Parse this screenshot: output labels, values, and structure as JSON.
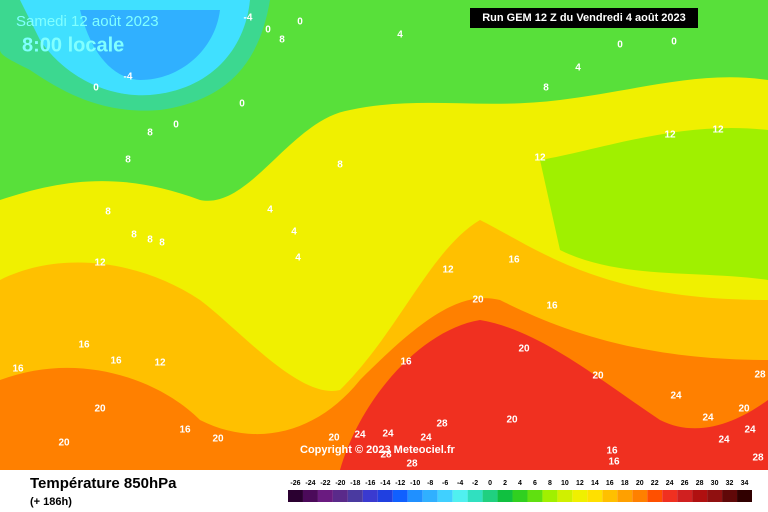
{
  "header": {
    "date": "Samedi 12 août 2023",
    "time": "8:00 locale",
    "run": "Run GEM 12 Z du Vendredi 4 août 2023",
    "copyright": "Copyright © 2023 Meteociel.fr"
  },
  "footer": {
    "title": "Température 850hPa",
    "lead": "(+ 186h)"
  },
  "scale": {
    "ticks": [
      -26,
      -24,
      -22,
      -20,
      -18,
      -16,
      -14,
      -12,
      -10,
      -8,
      -6,
      -4,
      -2,
      0,
      2,
      4,
      6,
      8,
      10,
      12,
      14,
      16,
      18,
      20,
      22,
      24,
      26,
      28,
      30,
      32,
      34
    ],
    "colors": [
      "#2a0030",
      "#4b0a5a",
      "#6a1b80",
      "#5a2a8a",
      "#4a3aa0",
      "#3a3ad0",
      "#2040e0",
      "#1060ff",
      "#2090ff",
      "#30b0ff",
      "#40d0ff",
      "#50f0f0",
      "#30e0c0",
      "#20d080",
      "#10c040",
      "#30d020",
      "#60e010",
      "#a0f000",
      "#d0f000",
      "#f0f000",
      "#ffe000",
      "#ffc000",
      "#ffa000",
      "#ff8000",
      "#ff5000",
      "#f03020",
      "#d02020",
      "#b01010",
      "#901010",
      "#600808",
      "#300000"
    ]
  },
  "contour_labels": [
    -4,
    0,
    8,
    0,
    -4,
    0,
    0,
    0,
    8,
    8,
    8,
    8,
    8,
    8,
    12,
    4,
    4,
    8,
    0,
    0,
    12,
    12,
    12,
    8,
    4,
    4,
    4,
    12,
    16,
    20,
    16,
    20,
    16,
    20,
    16,
    16,
    12,
    16,
    20,
    16,
    20,
    20,
    28,
    24,
    24,
    20,
    24,
    24,
    20,
    28,
    24,
    24,
    28,
    16,
    16,
    28,
    28,
    20,
    24
  ]
}
